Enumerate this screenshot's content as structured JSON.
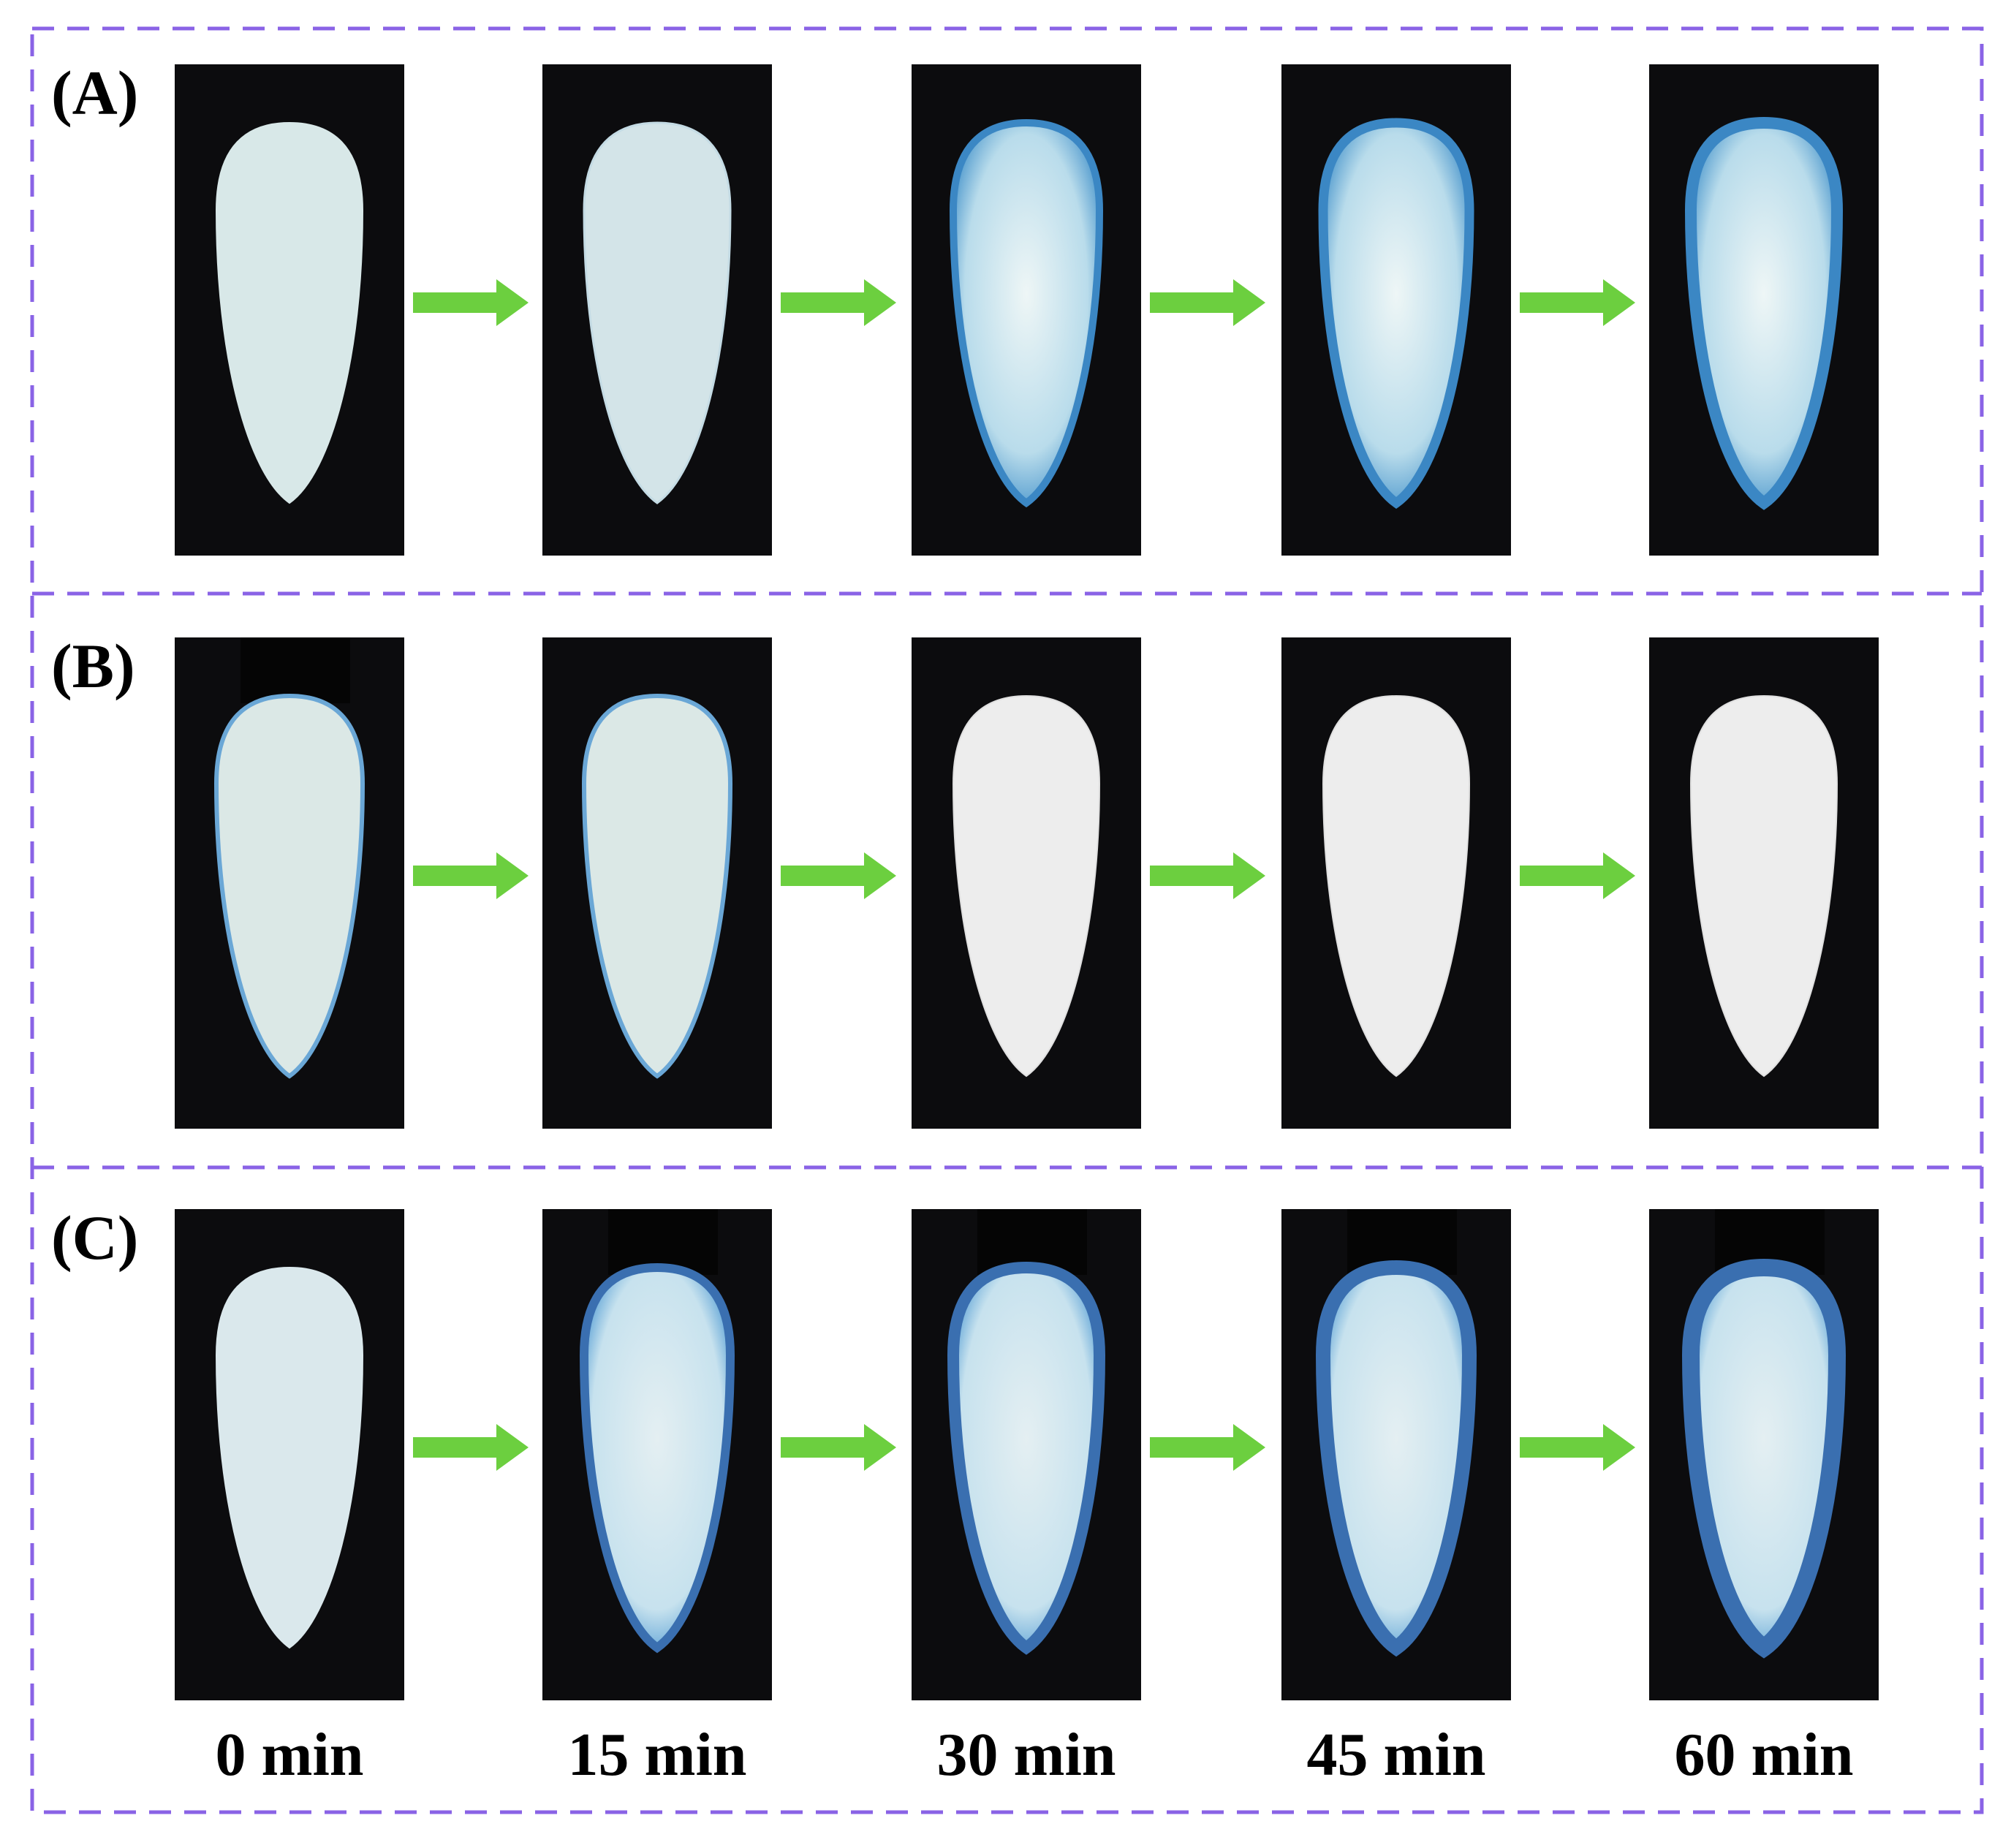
{
  "panels": [
    {
      "label": "(A)"
    },
    {
      "label": "(B)"
    },
    {
      "label": "(C)"
    }
  ],
  "time_labels": [
    "0 min",
    "15 min",
    "30 min",
    "45 min",
    "60 min"
  ]
}
